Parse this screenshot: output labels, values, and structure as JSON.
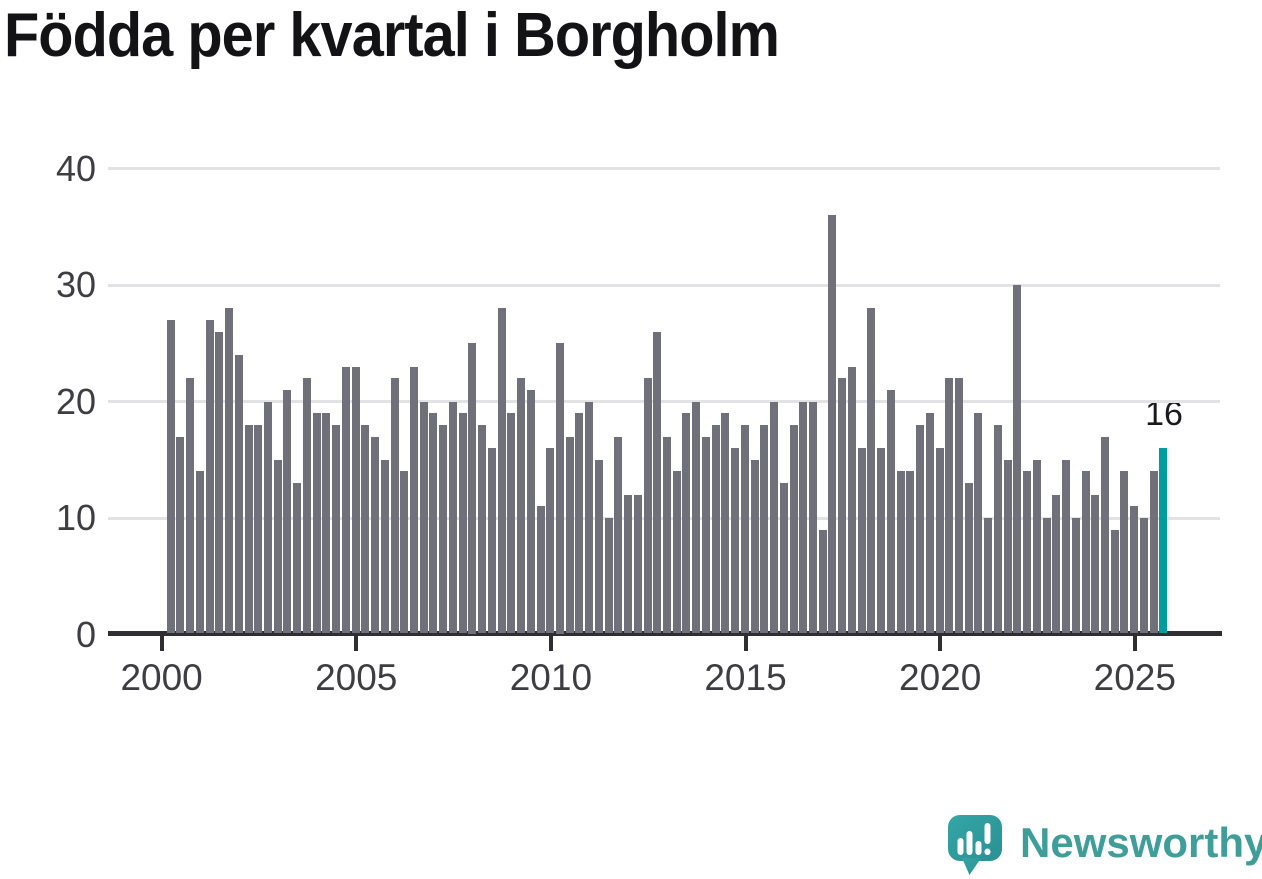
{
  "title": "Födda per kvartal i Borgholm",
  "annotation": {
    "label": "16"
  },
  "branding": {
    "name": "Newsworthy",
    "logo_icon": "speech-bubble-bar-chart-exclamation-icon"
  },
  "colors": {
    "bar": "#70707a",
    "highlight": "#009da0",
    "grid": "#e3e3e5",
    "axis": "#2e2e33",
    "tick_text": "#3d3d42",
    "title_text": "#131316",
    "annotation_text": "#1a1a1e",
    "brand_text": "#3f9e99",
    "logo_teal_light": "#34a6a6",
    "logo_teal_dark": "#2a9094",
    "background": "#ffffff"
  },
  "chart_data": {
    "type": "bar",
    "title": "Födda per kvartal i Borgholm",
    "x_unit": "quarter",
    "start_period": "2000 Q1",
    "end_period": "2025 Q3",
    "x_tick_labels": [
      "2000",
      "2005",
      "2010",
      "2015",
      "2020",
      "2025"
    ],
    "x_tick_quarter_indices": [
      0,
      20,
      40,
      60,
      80,
      100
    ],
    "y_ticks": [
      0,
      10,
      20,
      30,
      40
    ],
    "ylim": [
      0,
      40
    ],
    "grid": "horizontal",
    "legend": "none",
    "highlight_last_bar": true,
    "highlight_value_label": "16",
    "values": [
      27,
      17,
      22,
      14,
      27,
      26,
      28,
      24,
      18,
      18,
      20,
      15,
      21,
      13,
      22,
      19,
      19,
      18,
      23,
      23,
      18,
      17,
      15,
      22,
      14,
      23,
      20,
      19,
      18,
      20,
      19,
      25,
      18,
      16,
      28,
      19,
      22,
      21,
      11,
      16,
      25,
      17,
      19,
      20,
      15,
      10,
      17,
      12,
      12,
      22,
      26,
      17,
      14,
      19,
      20,
      17,
      18,
      19,
      16,
      18,
      15,
      18,
      20,
      13,
      18,
      20,
      20,
      9,
      36,
      22,
      23,
      16,
      28,
      16,
      21,
      14,
      14,
      18,
      19,
      16,
      22,
      22,
      13,
      19,
      10,
      18,
      15,
      30,
      14,
      15,
      10,
      12,
      15,
      10,
      14,
      12,
      17,
      9,
      14,
      11,
      10,
      14,
      16
    ]
  }
}
